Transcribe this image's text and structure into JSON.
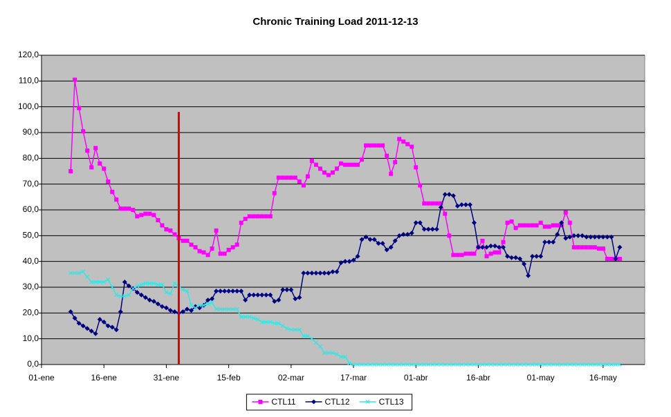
{
  "chart_data": {
    "type": "line",
    "title": "Chronic Training Load 2011-12-13",
    "x": [
      "08-ene",
      "09-ene",
      "10-ene",
      "11-ene",
      "12-ene",
      "13-ene",
      "14-ene",
      "15-ene",
      "16-ene",
      "17-ene",
      "18-ene",
      "19-ene",
      "20-ene",
      "21-ene",
      "22-ene",
      "23-ene",
      "24-ene",
      "25-ene",
      "26-ene",
      "27-ene",
      "28-ene",
      "29-ene",
      "30-ene",
      "31-ene",
      "01-feb",
      "02-feb",
      "03-feb",
      "04-feb",
      "05-feb",
      "06-feb",
      "07-feb",
      "08-feb",
      "09-feb",
      "10-feb",
      "11-feb",
      "12-feb",
      "13-feb",
      "14-feb",
      "15-feb",
      "16-feb",
      "17-feb",
      "18-feb",
      "19-feb",
      "20-feb",
      "21-feb",
      "22-feb",
      "23-feb",
      "24-feb",
      "25-feb",
      "26-feb",
      "27-feb",
      "28-feb",
      "01-mar",
      "02-mar",
      "03-mar",
      "04-mar",
      "05-mar",
      "06-mar",
      "07-mar",
      "08-mar",
      "09-mar",
      "10-mar",
      "11-mar",
      "12-mar",
      "13-mar",
      "14-mar",
      "15-mar",
      "16-mar",
      "17-mar",
      "18-mar",
      "19-mar",
      "20-mar",
      "21-mar",
      "22-mar",
      "23-mar",
      "24-mar",
      "25-mar",
      "26-mar",
      "27-mar",
      "28-mar",
      "29-mar",
      "30-mar",
      "31-mar",
      "01-abr",
      "02-abr",
      "03-abr",
      "04-abr",
      "05-abr",
      "06-abr",
      "07-abr",
      "08-abr",
      "09-abr",
      "10-abr",
      "11-abr",
      "12-abr",
      "13-abr",
      "14-abr",
      "15-abr",
      "16-abr",
      "17-abr",
      "18-abr",
      "19-abr",
      "20-abr",
      "21-abr",
      "22-abr",
      "23-abr",
      "24-abr",
      "25-abr",
      "26-abr",
      "27-abr",
      "28-abr",
      "29-abr",
      "30-abr",
      "01-may",
      "02-may",
      "03-may",
      "04-may",
      "05-may",
      "06-may",
      "07-may",
      "08-may",
      "09-may",
      "10-may",
      "11-may",
      "12-may",
      "13-may",
      "14-may",
      "15-may",
      "16-may",
      "17-may",
      "18-may",
      "19-may",
      "20-may"
    ],
    "series": [
      {
        "name": "CTL11",
        "color": "#ff00ff",
        "marker": "square",
        "values": [
          75,
          110.5,
          99.5,
          90.5,
          83,
          76.5,
          84,
          78,
          76,
          71,
          67,
          64,
          60.5,
          60.5,
          60.5,
          60,
          57.5,
          58,
          58.5,
          58.5,
          58,
          56,
          54,
          52.5,
          52,
          50.5,
          49,
          48,
          48,
          46.5,
          45.5,
          44,
          43.5,
          42.5,
          45,
          52,
          43,
          43,
          44.5,
          45.5,
          46.5,
          55,
          56.5,
          57.5,
          57.5,
          57.5,
          57.5,
          57.5,
          57.5,
          66.5,
          72.5,
          72.5,
          72.5,
          72.5,
          72.5,
          71,
          69.5,
          73,
          79,
          77.5,
          76,
          74.5,
          73.5,
          74.5,
          76,
          78,
          77.5,
          77.5,
          77.5,
          77.5,
          79.5,
          85,
          85,
          85,
          85,
          85,
          81,
          74,
          78.5,
          87.5,
          86.5,
          85.5,
          84.5,
          76.5,
          69.5,
          62.5,
          62.5,
          62.5,
          62.5,
          62.5,
          58.5,
          50,
          42.5,
          42.5,
          42.5,
          43,
          43,
          43,
          45.5,
          48,
          42,
          43,
          43.5,
          43.5,
          47.5,
          55,
          55.5,
          53,
          54,
          54,
          54,
          54,
          54,
          55,
          53.5,
          53.5,
          54,
          54,
          54,
          59,
          55,
          45.5,
          45.5,
          45.5,
          45.5,
          45.5,
          45.5,
          45,
          45,
          41,
          41,
          41,
          41
        ]
      },
      {
        "name": "CTL12",
        "color": "#000080",
        "marker": "diamond",
        "values": [
          20.5,
          18,
          16,
          15,
          14,
          13,
          12,
          17.5,
          16.5,
          15,
          14.5,
          13.5,
          20.5,
          32,
          30.5,
          29.5,
          28,
          27,
          26,
          25,
          24.5,
          23.5,
          22.5,
          22,
          21,
          20.5,
          20,
          20.5,
          21.5,
          21,
          22.5,
          22,
          23,
          25,
          25.5,
          28.5,
          28.5,
          28.5,
          28.5,
          28.5,
          28.5,
          28.5,
          25,
          27,
          27,
          27,
          27,
          27,
          27,
          24.5,
          25,
          29,
          29,
          29,
          25.5,
          26,
          35.5,
          35.5,
          35.5,
          35.5,
          35.5,
          35.5,
          35.5,
          36,
          36,
          39.5,
          40,
          40,
          40.5,
          42,
          48.5,
          49.5,
          48.5,
          48.5,
          47,
          47,
          44.5,
          45.5,
          48,
          50,
          50.5,
          50.5,
          51,
          55,
          55,
          52.5,
          52.5,
          52.5,
          52.5,
          61,
          66,
          66,
          65.5,
          61.5,
          62,
          62,
          62,
          55,
          45.5,
          45.5,
          45.5,
          46,
          46,
          45.5,
          45.5,
          42,
          41.5,
          41.5,
          41,
          39,
          34.5,
          42,
          42,
          42,
          47.5,
          47.5,
          47.5,
          50.5,
          55,
          49,
          49.5,
          50,
          50,
          50,
          49.5,
          49.5,
          49.5,
          49.5,
          49.5,
          49.5,
          49.5,
          41,
          45.5
        ]
      },
      {
        "name": "CTL13",
        "color": "#33e6e6",
        "marker": "x",
        "values": [
          35.5,
          35.5,
          35.5,
          36,
          34,
          32,
          32,
          32,
          32,
          33,
          30,
          27,
          26.5,
          26.5,
          27,
          29.5,
          30.5,
          31,
          31.5,
          31.5,
          31.5,
          31,
          31,
          28,
          27.5,
          31.5,
          30.5,
          29,
          28.5,
          23,
          22,
          23,
          23,
          23.5,
          24,
          21.5,
          21.5,
          21.5,
          21.5,
          21.5,
          21.5,
          18.5,
          18.5,
          18.5,
          18,
          17.5,
          16.5,
          16.5,
          16.5,
          16,
          16,
          15,
          14,
          13.5,
          13.5,
          13.5,
          11,
          11,
          10,
          8.5,
          7,
          4.5,
          4.5,
          4.5,
          4,
          3,
          3,
          0.5,
          0,
          0,
          0,
          0,
          0,
          0,
          0,
          0,
          0,
          0,
          0,
          0,
          0,
          0,
          0,
          0,
          0,
          0,
          0,
          0,
          0,
          0,
          0,
          0,
          0,
          0,
          0,
          0,
          0,
          0,
          0,
          0,
          0,
          0,
          0,
          0,
          0,
          0,
          0,
          0,
          0,
          0,
          0,
          0,
          0,
          0,
          0,
          0,
          0,
          0,
          0,
          0,
          0,
          0,
          0,
          0,
          0,
          0,
          0,
          0,
          0,
          0,
          0,
          0,
          0
        ]
      }
    ],
    "xlim": [
      "01-ene",
      "26-may"
    ],
    "xticks": [
      "01-ene",
      "16-ene",
      "31-ene",
      "15-feb",
      "02-mar",
      "17-mar",
      "01-abr",
      "16-abr",
      "01-may",
      "16-may"
    ],
    "ylim": [
      0,
      120
    ],
    "yticks": [
      {
        "value": 0,
        "label": "0,0"
      },
      {
        "value": 10,
        "label": "10,0"
      },
      {
        "value": 20,
        "label": "20,0"
      },
      {
        "value": 30,
        "label": "30,0"
      },
      {
        "value": 40,
        "label": "40,0"
      },
      {
        "value": 50,
        "label": "50,0"
      },
      {
        "value": 60,
        "label": "60,0"
      },
      {
        "value": 70,
        "label": "70,0"
      },
      {
        "value": 80,
        "label": "80,0"
      },
      {
        "value": 90,
        "label": "90,0"
      },
      {
        "value": 100,
        "label": "100,0"
      },
      {
        "value": 110,
        "label": "110,0"
      },
      {
        "value": 120,
        "label": "120,0"
      }
    ],
    "grid": true,
    "plot_background": "#c0c0c0",
    "legend": "bottom",
    "vlines": [
      {
        "x": "03-feb",
        "ymax": 98,
        "color": "#e00000"
      }
    ]
  }
}
